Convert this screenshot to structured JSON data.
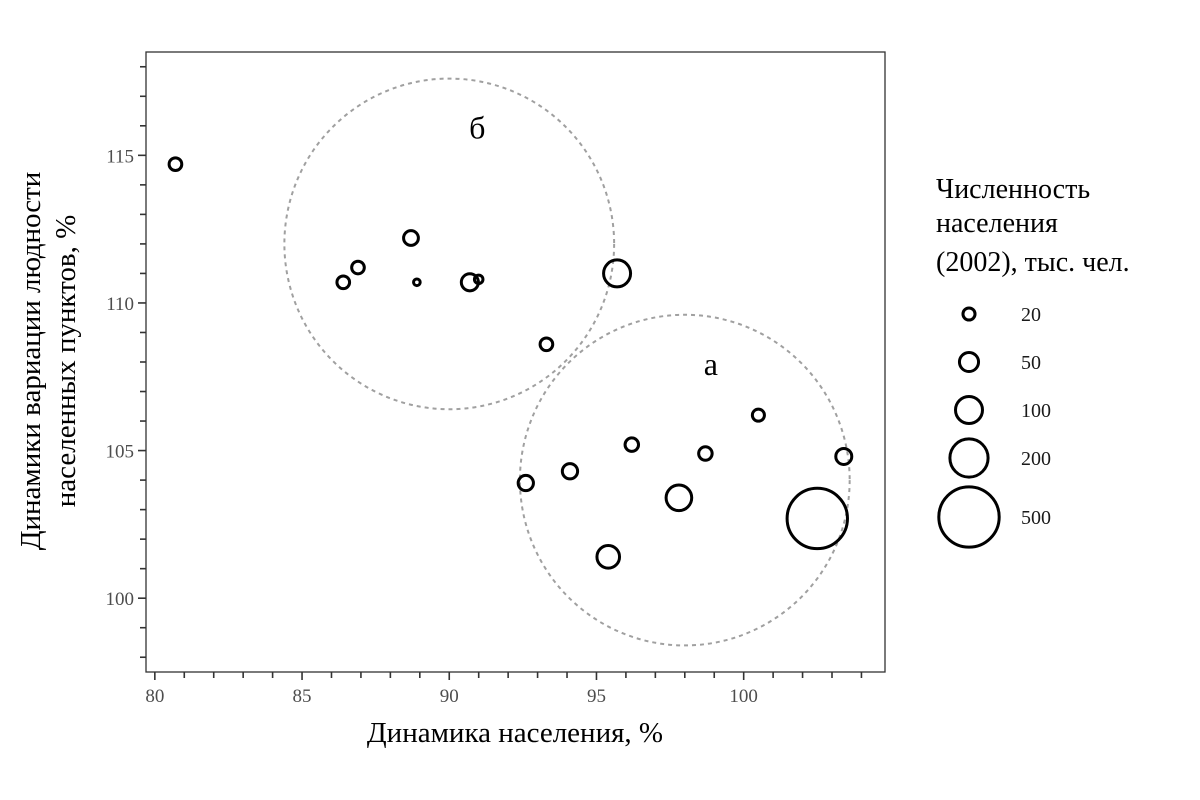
{
  "chart_data": {
    "type": "scatter",
    "xlabel": "Динамика населения, %",
    "ylabel_lines": [
      "Динамики вариации людности",
      "населенных пунктов, %"
    ],
    "xlim": [
      79.7,
      104.8
    ],
    "ylim": [
      97.5,
      118.5
    ],
    "x_ticks": [
      80,
      85,
      90,
      95,
      100
    ],
    "x_tick_labels": [
      "80",
      "85",
      "90",
      "95",
      "100"
    ],
    "y_ticks": [
      100,
      105,
      110,
      115
    ],
    "y_tick_labels": [
      "100",
      "105",
      "110",
      "115"
    ],
    "grid": false,
    "legend": {
      "title_lines": [
        "Численность",
        "населения",
        "(2002), тыс. чел."
      ],
      "placement": "right",
      "entries": [
        {
          "label": "20",
          "size": 20
        },
        {
          "label": "50",
          "size": 50
        },
        {
          "label": "100",
          "size": 100
        },
        {
          "label": "200",
          "size": 200
        },
        {
          "label": "500",
          "size": 500
        }
      ]
    },
    "points": [
      {
        "x": 80.7,
        "y": 114.7,
        "size": 22
      },
      {
        "x": 86.4,
        "y": 110.7,
        "size": 22
      },
      {
        "x": 86.9,
        "y": 111.2,
        "size": 22
      },
      {
        "x": 88.7,
        "y": 112.2,
        "size": 30
      },
      {
        "x": 88.9,
        "y": 110.7,
        "size": 6
      },
      {
        "x": 90.7,
        "y": 110.7,
        "size": 40
      },
      {
        "x": 91.0,
        "y": 110.8,
        "size": 10
      },
      {
        "x": 95.7,
        "y": 111.0,
        "size": 100
      },
      {
        "x": 93.3,
        "y": 108.6,
        "size": 22
      },
      {
        "x": 92.6,
        "y": 103.9,
        "size": 32
      },
      {
        "x": 94.1,
        "y": 104.3,
        "size": 32
      },
      {
        "x": 96.2,
        "y": 105.2,
        "size": 25
      },
      {
        "x": 95.4,
        "y": 101.4,
        "size": 70
      },
      {
        "x": 97.8,
        "y": 103.4,
        "size": 90
      },
      {
        "x": 98.7,
        "y": 104.9,
        "size": 25
      },
      {
        "x": 100.5,
        "y": 106.2,
        "size": 20
      },
      {
        "x": 103.4,
        "y": 104.8,
        "size": 35
      },
      {
        "x": 102.5,
        "y": 102.7,
        "size": 500
      }
    ],
    "groups": [
      {
        "label": "б",
        "center_x": 90.0,
        "center_y": 112.0,
        "radius_x": 5.6,
        "radius_y": 5.6
      },
      {
        "label": "а",
        "center_x": 98.0,
        "center_y": 104.0,
        "radius_x": 5.6,
        "radius_y": 5.6
      }
    ],
    "colors": {
      "points": "#000000",
      "group_circles": "#a0a0a0",
      "frame": "#333333"
    }
  }
}
